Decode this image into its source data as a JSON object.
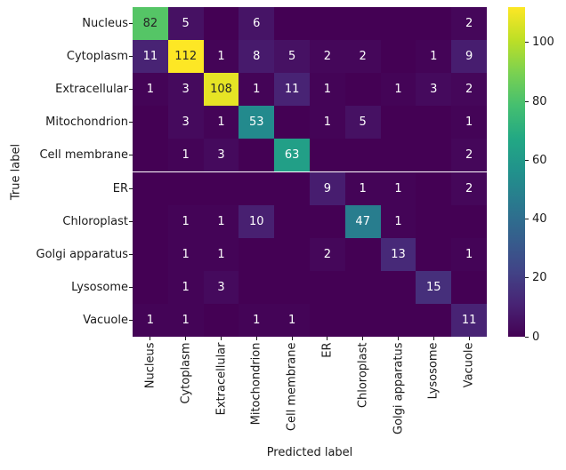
{
  "chart_data": {
    "type": "heatmap",
    "title": "",
    "xlabel": "Predicted label",
    "ylabel": "True label",
    "x_categories": [
      "Nucleus",
      "Cytoplasm",
      "Extracellular",
      "Mitochondrion",
      "Cell membrane",
      "ER",
      "Chloroplast",
      "Golgi apparatus",
      "Lysosome",
      "Vacuole"
    ],
    "y_categories": [
      "Nucleus",
      "Cytoplasm",
      "Extracellular",
      "Mitochondrion",
      "Cell membrane",
      "ER",
      "Chloroplast",
      "Golgi apparatus",
      "Lysosome",
      "Vacuole"
    ],
    "matrix": [
      [
        82,
        5,
        0,
        6,
        0,
        0,
        0,
        0,
        0,
        2
      ],
      [
        11,
        112,
        1,
        8,
        5,
        2,
        2,
        0,
        1,
        9
      ],
      [
        1,
        3,
        108,
        1,
        11,
        1,
        0,
        1,
        3,
        2
      ],
      [
        0,
        3,
        1,
        53,
        0,
        1,
        5,
        0,
        0,
        1
      ],
      [
        0,
        1,
        3,
        0,
        63,
        0,
        0,
        0,
        0,
        2
      ],
      [
        0,
        0,
        0,
        0,
        0,
        9,
        1,
        1,
        0,
        2
      ],
      [
        0,
        1,
        1,
        10,
        0,
        0,
        47,
        1,
        0,
        0
      ],
      [
        0,
        1,
        1,
        0,
        0,
        2,
        0,
        13,
        0,
        1
      ],
      [
        0,
        1,
        3,
        0,
        0,
        0,
        0,
        0,
        15,
        0
      ],
      [
        1,
        1,
        0,
        1,
        1,
        0,
        0,
        0,
        0,
        11
      ]
    ],
    "vmin": 0,
    "vmax": 112,
    "hide_zero_annotations": true,
    "grid": false,
    "colormap": {
      "name": "viridis",
      "anchors": [
        {
          "t": 0.0,
          "hex": "#440154"
        },
        {
          "t": 0.1,
          "hex": "#482475"
        },
        {
          "t": 0.2,
          "hex": "#414487"
        },
        {
          "t": 0.3,
          "hex": "#355f8d"
        },
        {
          "t": 0.4,
          "hex": "#2a788e"
        },
        {
          "t": 0.5,
          "hex": "#21918c"
        },
        {
          "t": 0.6,
          "hex": "#22a884"
        },
        {
          "t": 0.7,
          "hex": "#44bf70"
        },
        {
          "t": 0.8,
          "hex": "#7ad151"
        },
        {
          "t": 0.9,
          "hex": "#bddf26"
        },
        {
          "t": 1.0,
          "hex": "#fde725"
        }
      ]
    },
    "annotation_colors": {
      "light_text": "#ffffff",
      "dark_text": "#262626"
    },
    "colorbar": {
      "position": "right",
      "ticks": [
        0,
        20,
        40,
        60,
        80,
        100
      ]
    }
  }
}
